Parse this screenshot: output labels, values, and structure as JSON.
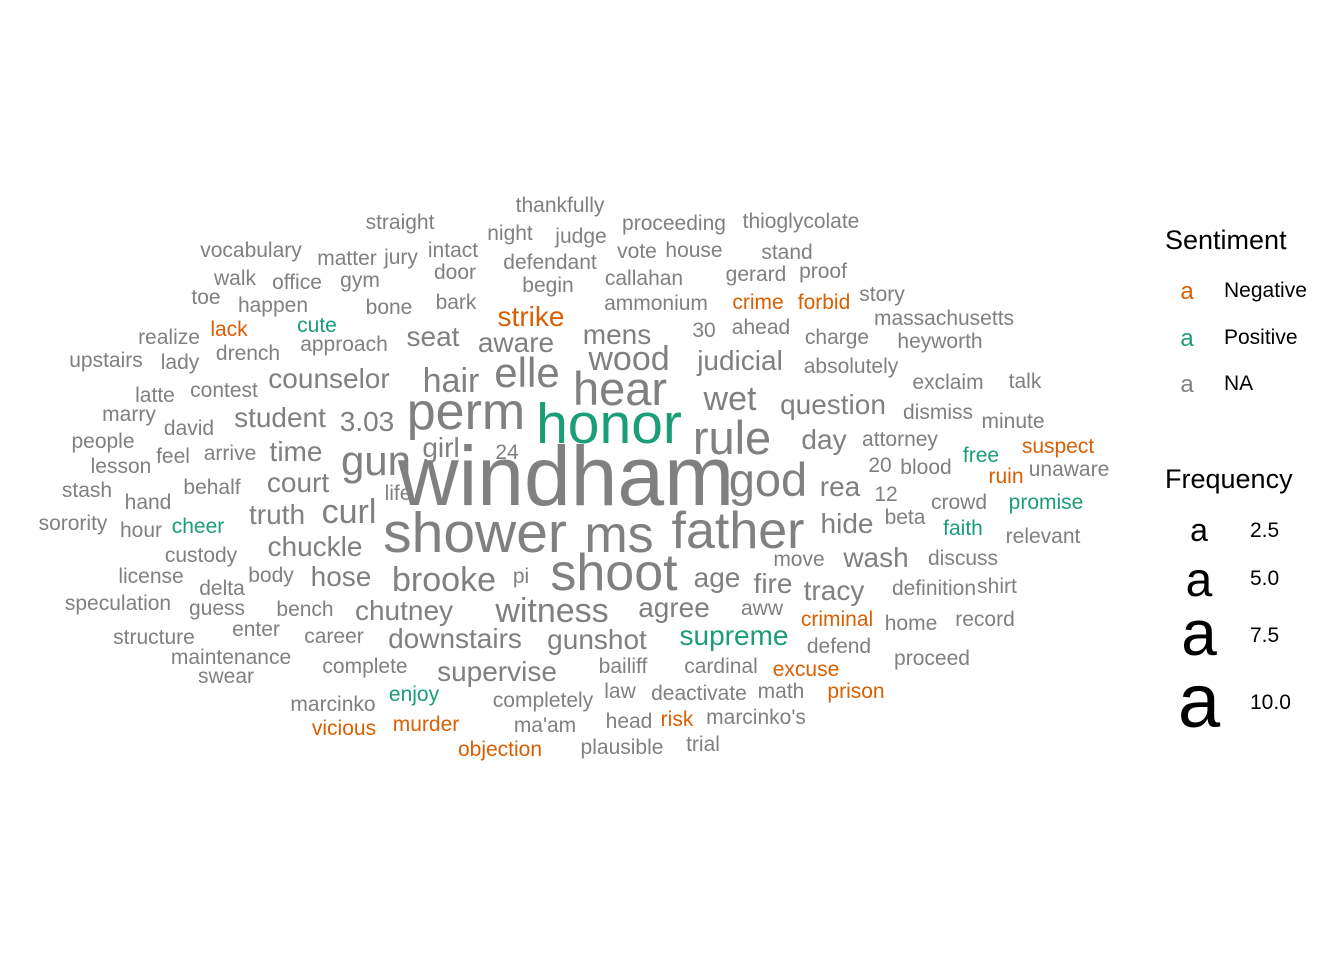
{
  "chart_data": {
    "type": "wordcloud",
    "colors": {
      "Negative": "#D95F02",
      "Positive": "#1B9E77",
      "NA": "#808080"
    },
    "legend": {
      "sentiment_title": "Sentiment",
      "frequency_title": "Frequency",
      "key_glyph": "a",
      "sentiment_entries": [
        {
          "label": "Negative",
          "sentiment": "Negative"
        },
        {
          "label": "Positive",
          "sentiment": "Positive"
        },
        {
          "label": "NA",
          "sentiment": "NA"
        }
      ],
      "frequency_entries": [
        {
          "label": "2.5",
          "value": 2.5
        },
        {
          "label": "5.0",
          "value": 5.0
        },
        {
          "label": "7.5",
          "value": 7.5
        },
        {
          "label": "10.0",
          "value": 10.0
        }
      ]
    },
    "words": [
      {
        "word": "windham",
        "freq": 11,
        "sentiment": "NA"
      },
      {
        "word": "honor",
        "freq": 8,
        "sentiment": "Positive"
      },
      {
        "word": "shower",
        "freq": 8,
        "sentiment": "NA"
      },
      {
        "word": "perm",
        "freq": 7,
        "sentiment": "NA"
      },
      {
        "word": "ms",
        "freq": 7,
        "sentiment": "NA"
      },
      {
        "word": "father",
        "freq": 7,
        "sentiment": "NA"
      },
      {
        "word": "shoot",
        "freq": 7,
        "sentiment": "NA"
      },
      {
        "word": "hear",
        "freq": 6,
        "sentiment": "NA"
      },
      {
        "word": "rule",
        "freq": 6,
        "sentiment": "NA"
      },
      {
        "word": "god",
        "freq": 6,
        "sentiment": "NA"
      },
      {
        "word": "gun",
        "freq": 5,
        "sentiment": "NA"
      },
      {
        "word": "elle",
        "freq": 5,
        "sentiment": "NA"
      },
      {
        "word": "wood",
        "freq": 4,
        "sentiment": "NA"
      },
      {
        "word": "curl",
        "freq": 4,
        "sentiment": "NA"
      },
      {
        "word": "hair",
        "freq": 4,
        "sentiment": "NA"
      },
      {
        "word": "wet",
        "freq": 4,
        "sentiment": "NA"
      },
      {
        "word": "witness",
        "freq": 4,
        "sentiment": "NA"
      },
      {
        "word": "brooke",
        "freq": 4,
        "sentiment": "NA"
      },
      {
        "word": "3.03",
        "freq": 3,
        "sentiment": "NA"
      },
      {
        "word": "mens",
        "freq": 3,
        "sentiment": "NA"
      },
      {
        "word": "judicial",
        "freq": 3,
        "sentiment": "NA"
      },
      {
        "word": "aware",
        "freq": 3,
        "sentiment": "NA"
      },
      {
        "word": "strike",
        "freq": 3,
        "sentiment": "Negative"
      },
      {
        "word": "seat",
        "freq": 3,
        "sentiment": "NA"
      },
      {
        "word": "counselor",
        "freq": 3,
        "sentiment": "NA"
      },
      {
        "word": "girl",
        "freq": 3,
        "sentiment": "NA"
      },
      {
        "word": "question",
        "freq": 3,
        "sentiment": "NA"
      },
      {
        "word": "day",
        "freq": 3,
        "sentiment": "NA"
      },
      {
        "word": "rea",
        "freq": 3,
        "sentiment": "NA"
      },
      {
        "word": "hide",
        "freq": 3,
        "sentiment": "NA"
      },
      {
        "word": "wash",
        "freq": 3,
        "sentiment": "NA"
      },
      {
        "word": "tracy",
        "freq": 3,
        "sentiment": "NA"
      },
      {
        "word": "fire",
        "freq": 3,
        "sentiment": "NA"
      },
      {
        "word": "age",
        "freq": 3,
        "sentiment": "NA"
      },
      {
        "word": "agree",
        "freq": 3,
        "sentiment": "NA"
      },
      {
        "word": "supreme",
        "freq": 3,
        "sentiment": "Positive"
      },
      {
        "word": "gunshot",
        "freq": 3,
        "sentiment": "NA"
      },
      {
        "word": "downstairs",
        "freq": 3,
        "sentiment": "NA"
      },
      {
        "word": "supervise",
        "freq": 3,
        "sentiment": "NA"
      },
      {
        "word": "chutney",
        "freq": 3,
        "sentiment": "NA"
      },
      {
        "word": "hose",
        "freq": 3,
        "sentiment": "NA"
      },
      {
        "word": "chuckle",
        "freq": 3,
        "sentiment": "NA"
      },
      {
        "word": "truth",
        "freq": 3,
        "sentiment": "NA"
      },
      {
        "word": "court",
        "freq": 3,
        "sentiment": "NA"
      },
      {
        "word": "time",
        "freq": 3,
        "sentiment": "NA"
      },
      {
        "word": "student",
        "freq": 3,
        "sentiment": "NA"
      },
      {
        "word": "thankfully",
        "freq": 2,
        "sentiment": "NA"
      },
      {
        "word": "straight",
        "freq": 2,
        "sentiment": "NA"
      },
      {
        "word": "proceeding",
        "freq": 2,
        "sentiment": "NA"
      },
      {
        "word": "thioglycolate",
        "freq": 2,
        "sentiment": "NA"
      },
      {
        "word": "night",
        "freq": 2,
        "sentiment": "NA"
      },
      {
        "word": "judge",
        "freq": 2,
        "sentiment": "NA"
      },
      {
        "word": "vocabulary",
        "freq": 2,
        "sentiment": "NA"
      },
      {
        "word": "intact",
        "freq": 2,
        "sentiment": "NA"
      },
      {
        "word": "vote",
        "freq": 2,
        "sentiment": "NA"
      },
      {
        "word": "house",
        "freq": 2,
        "sentiment": "NA"
      },
      {
        "word": "stand",
        "freq": 2,
        "sentiment": "NA"
      },
      {
        "word": "matter",
        "freq": 2,
        "sentiment": "NA"
      },
      {
        "word": "jury",
        "freq": 2,
        "sentiment": "NA"
      },
      {
        "word": "defendant",
        "freq": 2,
        "sentiment": "NA"
      },
      {
        "word": "walk",
        "freq": 2,
        "sentiment": "NA"
      },
      {
        "word": "door",
        "freq": 2,
        "sentiment": "NA"
      },
      {
        "word": "callahan",
        "freq": 2,
        "sentiment": "NA"
      },
      {
        "word": "gerard",
        "freq": 2,
        "sentiment": "NA"
      },
      {
        "word": "proof",
        "freq": 2,
        "sentiment": "NA"
      },
      {
        "word": "office",
        "freq": 2,
        "sentiment": "NA"
      },
      {
        "word": "gym",
        "freq": 2,
        "sentiment": "NA"
      },
      {
        "word": "begin",
        "freq": 2,
        "sentiment": "NA"
      },
      {
        "word": "toe",
        "freq": 2,
        "sentiment": "NA"
      },
      {
        "word": "story",
        "freq": 2,
        "sentiment": "NA"
      },
      {
        "word": "happen",
        "freq": 2,
        "sentiment": "NA"
      },
      {
        "word": "bark",
        "freq": 2,
        "sentiment": "NA"
      },
      {
        "word": "ammonium",
        "freq": 2,
        "sentiment": "NA"
      },
      {
        "word": "crime",
        "freq": 2,
        "sentiment": "Negative"
      },
      {
        "word": "forbid",
        "freq": 2,
        "sentiment": "Negative"
      },
      {
        "word": "bone",
        "freq": 2,
        "sentiment": "NA"
      },
      {
        "word": "massachusetts",
        "freq": 2,
        "sentiment": "NA"
      },
      {
        "word": "lack",
        "freq": 2,
        "sentiment": "Negative"
      },
      {
        "word": "cute",
        "freq": 2,
        "sentiment": "Positive"
      },
      {
        "word": "30",
        "freq": 2,
        "sentiment": "NA"
      },
      {
        "word": "ahead",
        "freq": 2,
        "sentiment": "NA"
      },
      {
        "word": "realize",
        "freq": 2,
        "sentiment": "NA"
      },
      {
        "word": "approach",
        "freq": 2,
        "sentiment": "NA"
      },
      {
        "word": "charge",
        "freq": 2,
        "sentiment": "NA"
      },
      {
        "word": "heyworth",
        "freq": 2,
        "sentiment": "NA"
      },
      {
        "word": "drench",
        "freq": 2,
        "sentiment": "NA"
      },
      {
        "word": "upstairs",
        "freq": 2,
        "sentiment": "NA"
      },
      {
        "word": "lady",
        "freq": 2,
        "sentiment": "NA"
      },
      {
        "word": "absolutely",
        "freq": 2,
        "sentiment": "NA"
      },
      {
        "word": "exclaim",
        "freq": 2,
        "sentiment": "NA"
      },
      {
        "word": "talk",
        "freq": 2,
        "sentiment": "NA"
      },
      {
        "word": "latte",
        "freq": 2,
        "sentiment": "NA"
      },
      {
        "word": "contest",
        "freq": 2,
        "sentiment": "NA"
      },
      {
        "word": "marry",
        "freq": 2,
        "sentiment": "NA"
      },
      {
        "word": "dismiss",
        "freq": 2,
        "sentiment": "NA"
      },
      {
        "word": "minute",
        "freq": 2,
        "sentiment": "NA"
      },
      {
        "word": "david",
        "freq": 2,
        "sentiment": "NA"
      },
      {
        "word": "attorney",
        "freq": 2,
        "sentiment": "NA"
      },
      {
        "word": "suspect",
        "freq": 2,
        "sentiment": "Negative"
      },
      {
        "word": "people",
        "freq": 2,
        "sentiment": "NA"
      },
      {
        "word": "arrive",
        "freq": 2,
        "sentiment": "NA"
      },
      {
        "word": "24",
        "freq": 2,
        "sentiment": "NA"
      },
      {
        "word": "free",
        "freq": 2,
        "sentiment": "Positive"
      },
      {
        "word": "feel",
        "freq": 2,
        "sentiment": "NA"
      },
      {
        "word": "lesson",
        "freq": 2,
        "sentiment": "NA"
      },
      {
        "word": "20",
        "freq": 2,
        "sentiment": "NA"
      },
      {
        "word": "blood",
        "freq": 2,
        "sentiment": "NA"
      },
      {
        "word": "unaware",
        "freq": 2,
        "sentiment": "NA"
      },
      {
        "word": "ruin",
        "freq": 2,
        "sentiment": "Negative"
      },
      {
        "word": "behalf",
        "freq": 2,
        "sentiment": "NA"
      },
      {
        "word": "stash",
        "freq": 2,
        "sentiment": "NA"
      },
      {
        "word": "life",
        "freq": 2,
        "sentiment": "NA"
      },
      {
        "word": "12",
        "freq": 2,
        "sentiment": "NA"
      },
      {
        "word": "crowd",
        "freq": 2,
        "sentiment": "NA"
      },
      {
        "word": "promise",
        "freq": 2,
        "sentiment": "Positive"
      },
      {
        "word": "hand",
        "freq": 2,
        "sentiment": "NA"
      },
      {
        "word": "beta",
        "freq": 2,
        "sentiment": "NA"
      },
      {
        "word": "faith",
        "freq": 2,
        "sentiment": "Positive"
      },
      {
        "word": "sorority",
        "freq": 2,
        "sentiment": "NA"
      },
      {
        "word": "hour",
        "freq": 2,
        "sentiment": "NA"
      },
      {
        "word": "cheer",
        "freq": 2,
        "sentiment": "Positive"
      },
      {
        "word": "relevant",
        "freq": 2,
        "sentiment": "NA"
      },
      {
        "word": "custody",
        "freq": 2,
        "sentiment": "NA"
      },
      {
        "word": "move",
        "freq": 2,
        "sentiment": "NA"
      },
      {
        "word": "discuss",
        "freq": 2,
        "sentiment": "NA"
      },
      {
        "word": "license",
        "freq": 2,
        "sentiment": "NA"
      },
      {
        "word": "body",
        "freq": 2,
        "sentiment": "NA"
      },
      {
        "word": "pi",
        "freq": 2,
        "sentiment": "NA"
      },
      {
        "word": "delta",
        "freq": 2,
        "sentiment": "NA"
      },
      {
        "word": "definition",
        "freq": 2,
        "sentiment": "NA"
      },
      {
        "word": "shirt",
        "freq": 2,
        "sentiment": "NA"
      },
      {
        "word": "speculation",
        "freq": 2,
        "sentiment": "NA"
      },
      {
        "word": "guess",
        "freq": 2,
        "sentiment": "NA"
      },
      {
        "word": "bench",
        "freq": 2,
        "sentiment": "NA"
      },
      {
        "word": "aww",
        "freq": 2,
        "sentiment": "NA"
      },
      {
        "word": "criminal",
        "freq": 2,
        "sentiment": "Negative"
      },
      {
        "word": "home",
        "freq": 2,
        "sentiment": "NA"
      },
      {
        "word": "record",
        "freq": 2,
        "sentiment": "NA"
      },
      {
        "word": "enter",
        "freq": 2,
        "sentiment": "NA"
      },
      {
        "word": "structure",
        "freq": 2,
        "sentiment": "NA"
      },
      {
        "word": "career",
        "freq": 2,
        "sentiment": "NA"
      },
      {
        "word": "defend",
        "freq": 2,
        "sentiment": "NA"
      },
      {
        "word": "maintenance",
        "freq": 2,
        "sentiment": "NA"
      },
      {
        "word": "proceed",
        "freq": 2,
        "sentiment": "NA"
      },
      {
        "word": "complete",
        "freq": 2,
        "sentiment": "NA"
      },
      {
        "word": "bailiff",
        "freq": 2,
        "sentiment": "NA"
      },
      {
        "word": "cardinal",
        "freq": 2,
        "sentiment": "NA"
      },
      {
        "word": "excuse",
        "freq": 2,
        "sentiment": "Negative"
      },
      {
        "word": "swear",
        "freq": 2,
        "sentiment": "NA"
      },
      {
        "word": "law",
        "freq": 2,
        "sentiment": "NA"
      },
      {
        "word": "deactivate",
        "freq": 2,
        "sentiment": "NA"
      },
      {
        "word": "math",
        "freq": 2,
        "sentiment": "NA"
      },
      {
        "word": "prison",
        "freq": 2,
        "sentiment": "Negative"
      },
      {
        "word": "enjoy",
        "freq": 2,
        "sentiment": "Positive"
      },
      {
        "word": "marcinko",
        "freq": 2,
        "sentiment": "NA"
      },
      {
        "word": "completely",
        "freq": 2,
        "sentiment": "NA"
      },
      {
        "word": "head",
        "freq": 2,
        "sentiment": "NA"
      },
      {
        "word": "risk",
        "freq": 2,
        "sentiment": "Negative"
      },
      {
        "word": "marcinko's",
        "freq": 2,
        "sentiment": "NA"
      },
      {
        "word": "vicious",
        "freq": 2,
        "sentiment": "Negative"
      },
      {
        "word": "murder",
        "freq": 2,
        "sentiment": "Negative"
      },
      {
        "word": "ma'am",
        "freq": 2,
        "sentiment": "NA"
      },
      {
        "word": "objection",
        "freq": 2,
        "sentiment": "Negative"
      },
      {
        "word": "plausible",
        "freq": 2,
        "sentiment": "NA"
      },
      {
        "word": "trial",
        "freq": 2,
        "sentiment": "NA"
      }
    ]
  }
}
